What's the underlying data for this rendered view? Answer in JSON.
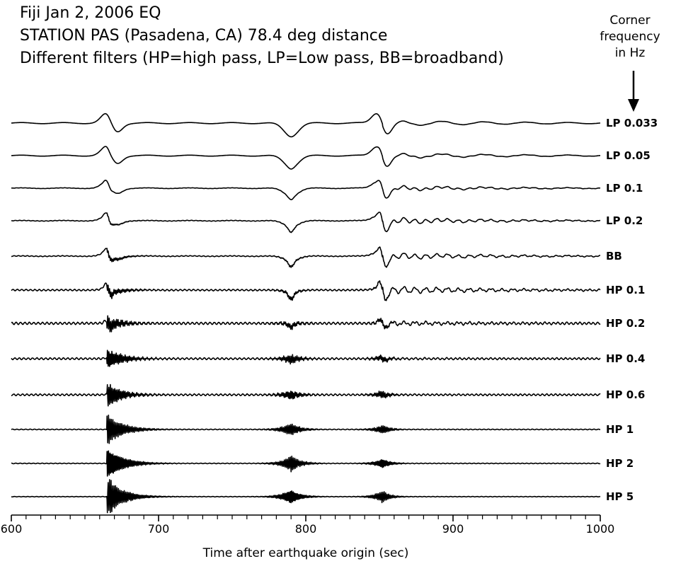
{
  "header": {
    "line1": "Fiji Jan 2, 2006 EQ",
    "line2": "STATION PAS (Pasadena, CA) 78.4 deg distance",
    "line3": "Different filters (HP=high pass, LP=Low pass, BB=broadband)"
  },
  "annotation": {
    "corner_line1": "Corner",
    "corner_line2": "frequency",
    "corner_line3": "in Hz",
    "arrow_icon": "down-arrow"
  },
  "chart_data": {
    "type": "line",
    "xlabel": "Time after earthquake origin (sec)",
    "xlim": [
      600,
      1000
    ],
    "xticks": [
      600,
      700,
      800,
      900,
      1000
    ],
    "minor_tick_step": 10,
    "arrivals_sec": [
      666,
      790,
      852
    ],
    "series": [
      {
        "name": "LP 0.033"
      },
      {
        "name": "LP 0.05"
      },
      {
        "name": "LP 0.1"
      },
      {
        "name": "LP 0.2"
      },
      {
        "name": "BB"
      },
      {
        "name": "HP 0.1"
      },
      {
        "name": "HP 0.2"
      },
      {
        "name": "HP 0.4"
      },
      {
        "name": "HP 0.6"
      },
      {
        "name": "HP 1"
      },
      {
        "name": "HP 2"
      },
      {
        "name": "HP 5"
      }
    ]
  }
}
